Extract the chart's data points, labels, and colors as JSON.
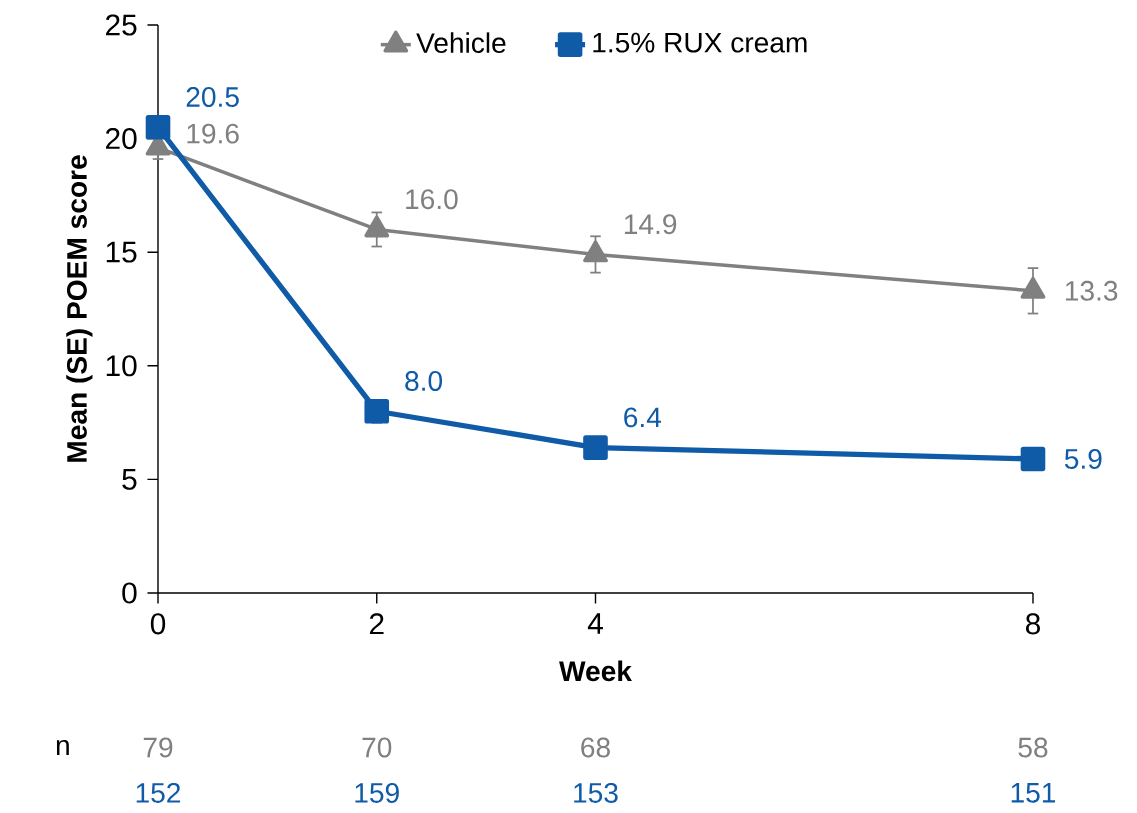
{
  "chart_data": {
    "type": "line",
    "xlabel": "Week",
    "ylabel": "Mean (SE) POEM score",
    "x": [
      0,
      2,
      4,
      8
    ],
    "xlim": [
      0,
      8
    ],
    "xticks": [
      0,
      2,
      4,
      8
    ],
    "ylim": [
      0,
      25
    ],
    "yticks": [
      0,
      5,
      10,
      15,
      20,
      25
    ],
    "series": [
      {
        "name": "Vehicle",
        "color": "#808080",
        "marker": "triangle",
        "values": [
          19.6,
          16.0,
          14.9,
          13.3
        ],
        "value_labels": [
          "19.6",
          "16.0",
          "14.9",
          "13.3"
        ],
        "errors": [
          0.5,
          0.75,
          0.8,
          1.0
        ]
      },
      {
        "name": "1.5% RUX cream",
        "color": "#0f5ba7",
        "marker": "square",
        "values": [
          20.5,
          8.0,
          6.4,
          5.9
        ],
        "value_labels": [
          "20.5",
          "8.0",
          "6.4",
          "5.9"
        ],
        "errors": [
          0.4,
          0.5,
          0.4,
          0.4
        ]
      }
    ],
    "legend": "top",
    "grid": false,
    "annotations": [
      "n",
      "79",
      "70",
      "68",
      "58",
      "152",
      "159",
      "153",
      "151"
    ]
  }
}
